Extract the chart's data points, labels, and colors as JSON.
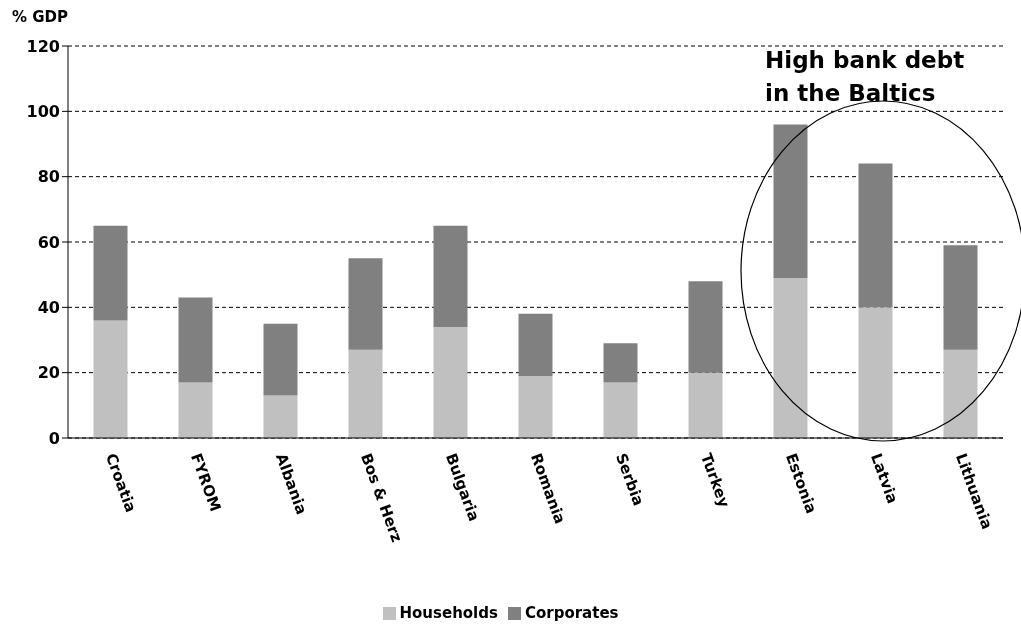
{
  "chart_data": {
    "type": "bar",
    "stacked": true,
    "ylabel": "% GDP",
    "categories": [
      "Croatia",
      "FYROM",
      "Albania",
      "Bos & Herz",
      "Bulgaria",
      "Romania",
      "Serbia",
      "Turkey",
      "Estonia",
      "Latvia",
      "Lithuania"
    ],
    "series": [
      {
        "name": "Households",
        "color": "#c0c0c0",
        "values": [
          36,
          17,
          13,
          27,
          34,
          19,
          17,
          20,
          49,
          40,
          27
        ]
      },
      {
        "name": "Corporates",
        "color": "#808080",
        "values": [
          29,
          26,
          22,
          28,
          31,
          19,
          12,
          28,
          47,
          44,
          32
        ]
      }
    ],
    "ylim": [
      0,
      120
    ],
    "yticks": [
      0,
      20,
      40,
      60,
      80,
      100,
      120
    ],
    "grid": "y",
    "legend": "bottom",
    "annotations": [
      "High bank debt in the Baltics"
    ]
  }
}
